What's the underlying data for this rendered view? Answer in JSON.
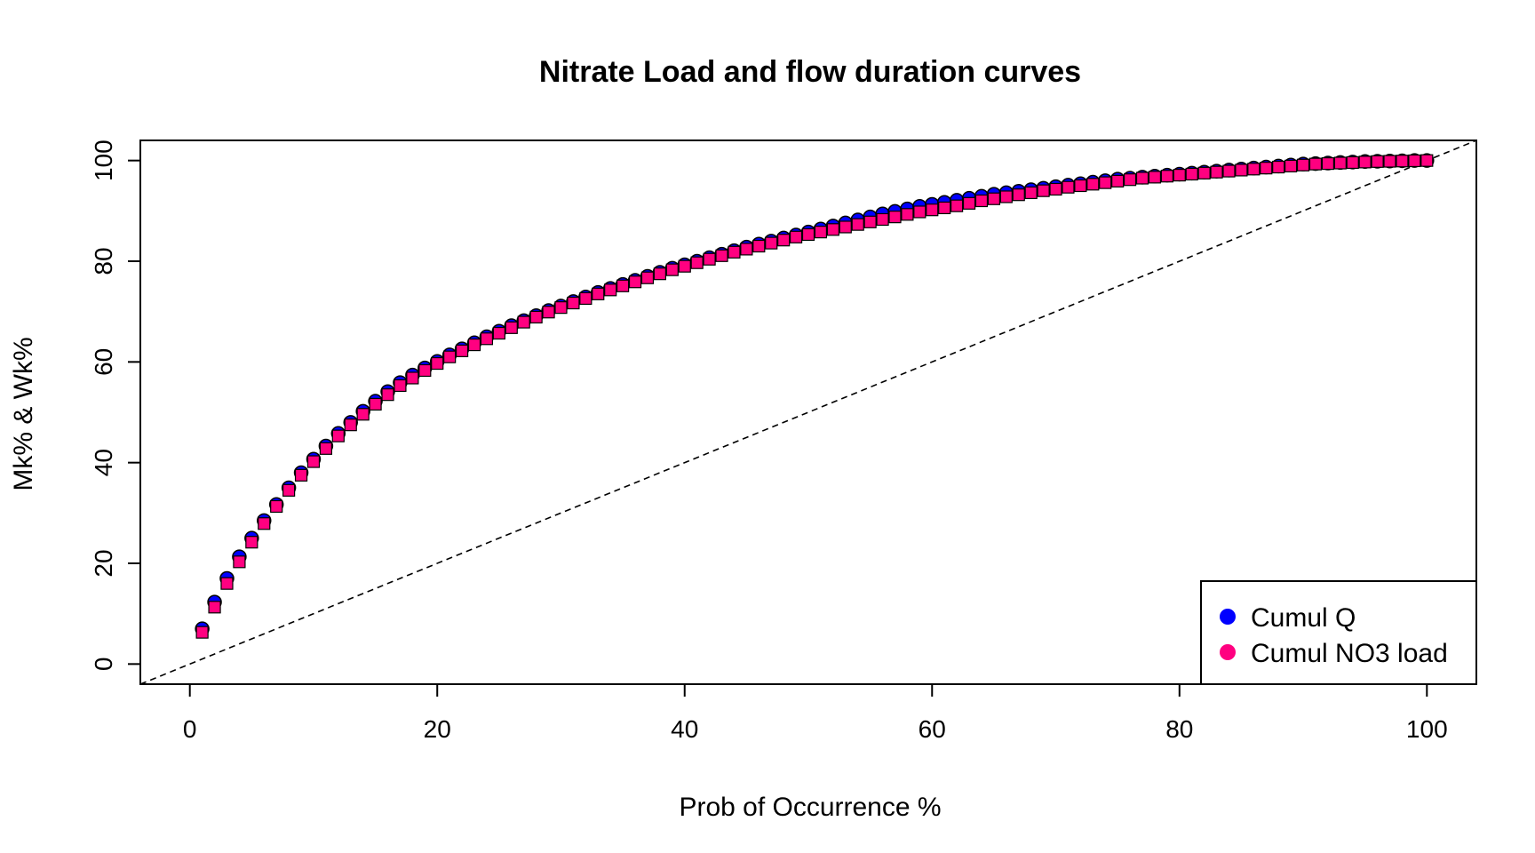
{
  "chart_data": {
    "type": "scatter",
    "title": "Nitrate Load and flow duration curves",
    "xlabel": "Prob of Occurrence %",
    "ylabel": "Mk% & Wk%",
    "xlim": [
      -4,
      104
    ],
    "ylim": [
      -4,
      104
    ],
    "xticks": [
      "0",
      "20",
      "40",
      "60",
      "80",
      "100"
    ],
    "yticks": [
      "0",
      "20",
      "40",
      "60",
      "80",
      "100"
    ],
    "grid": false,
    "legend_position": "bottom-right",
    "reference_line": {
      "style": "dashed",
      "from": [
        0,
        0
      ],
      "to": [
        100,
        100
      ]
    },
    "x": [
      1,
      2,
      3,
      4,
      5,
      6,
      7,
      8,
      9,
      10,
      11,
      12,
      13,
      14,
      15,
      16,
      17,
      18,
      19,
      20,
      21,
      22,
      23,
      24,
      25,
      26,
      27,
      28,
      29,
      30,
      31,
      32,
      33,
      34,
      35,
      36,
      37,
      38,
      39,
      40,
      41,
      42,
      43,
      44,
      45,
      46,
      47,
      48,
      49,
      50,
      51,
      52,
      53,
      54,
      55,
      56,
      57,
      58,
      59,
      60,
      61,
      62,
      63,
      64,
      65,
      66,
      67,
      68,
      69,
      70,
      71,
      72,
      73,
      74,
      75,
      76,
      77,
      78,
      79,
      80,
      81,
      82,
      83,
      84,
      85,
      86,
      87,
      88,
      89,
      90,
      91,
      92,
      93,
      94,
      95,
      96,
      97,
      98,
      99,
      100
    ],
    "series": [
      {
        "name": "Cumul Q",
        "marker": "circle",
        "color": "#0000ff",
        "values": [
          7.0,
          12.3,
          17.0,
          21.3,
          25.0,
          28.5,
          31.7,
          35.0,
          38.0,
          40.7,
          43.3,
          45.8,
          48.0,
          50.2,
          52.2,
          54.1,
          55.9,
          57.4,
          58.8,
          60.1,
          61.4,
          62.6,
          63.8,
          65.0,
          66.1,
          67.2,
          68.2,
          69.2,
          70.2,
          71.1,
          72.0,
          72.9,
          73.8,
          74.6,
          75.4,
          76.2,
          77.0,
          77.8,
          78.6,
          79.3,
          80.0,
          80.7,
          81.4,
          82.1,
          82.8,
          83.4,
          84.0,
          84.6,
          85.2,
          85.8,
          86.4,
          87.0,
          87.6,
          88.2,
          88.8,
          89.4,
          89.9,
          90.4,
          90.9,
          91.3,
          91.7,
          92.1,
          92.5,
          92.9,
          93.3,
          93.6,
          93.9,
          94.2,
          94.5,
          94.8,
          95.1,
          95.4,
          95.7,
          96.0,
          96.3,
          96.5,
          96.7,
          96.9,
          97.1,
          97.3,
          97.5,
          97.7,
          97.9,
          98.1,
          98.3,
          98.5,
          98.7,
          98.9,
          99.1,
          99.3,
          99.4,
          99.5,
          99.6,
          99.7,
          99.8,
          99.85,
          99.9,
          99.95,
          100,
          100
        ]
      },
      {
        "name": "Cumul NO3 load",
        "marker": "square",
        "color": "#ff0080",
        "values": [
          6.3,
          11.3,
          16.0,
          20.3,
          24.2,
          27.9,
          31.3,
          34.5,
          37.5,
          40.2,
          42.8,
          45.3,
          47.5,
          49.6,
          51.6,
          53.5,
          55.3,
          56.8,
          58.3,
          59.7,
          61.0,
          62.2,
          63.4,
          64.6,
          65.7,
          66.8,
          67.9,
          68.9,
          69.9,
          70.8,
          71.7,
          72.6,
          73.5,
          74.3,
          75.1,
          75.9,
          76.7,
          77.5,
          78.3,
          79.0,
          79.7,
          80.4,
          81.1,
          81.8,
          82.4,
          83.0,
          83.6,
          84.2,
          84.8,
          85.3,
          85.8,
          86.3,
          86.8,
          87.3,
          87.8,
          88.3,
          88.8,
          89.3,
          89.8,
          90.2,
          90.6,
          91.0,
          91.5,
          92.0,
          92.4,
          92.8,
          93.2,
          93.6,
          94.0,
          94.3,
          94.7,
          95.0,
          95.3,
          95.6,
          95.9,
          96.2,
          96.5,
          96.7,
          96.9,
          97.1,
          97.3,
          97.5,
          97.7,
          97.9,
          98.1,
          98.3,
          98.5,
          98.7,
          98.9,
          99.1,
          99.3,
          99.4,
          99.5,
          99.6,
          99.7,
          99.8,
          99.85,
          99.9,
          99.95,
          100
        ]
      }
    ]
  },
  "legend": {
    "items": [
      {
        "label": "Cumul Q",
        "color": "#0000ff"
      },
      {
        "label": "Cumul NO3 load",
        "color": "#ff0080"
      }
    ]
  }
}
